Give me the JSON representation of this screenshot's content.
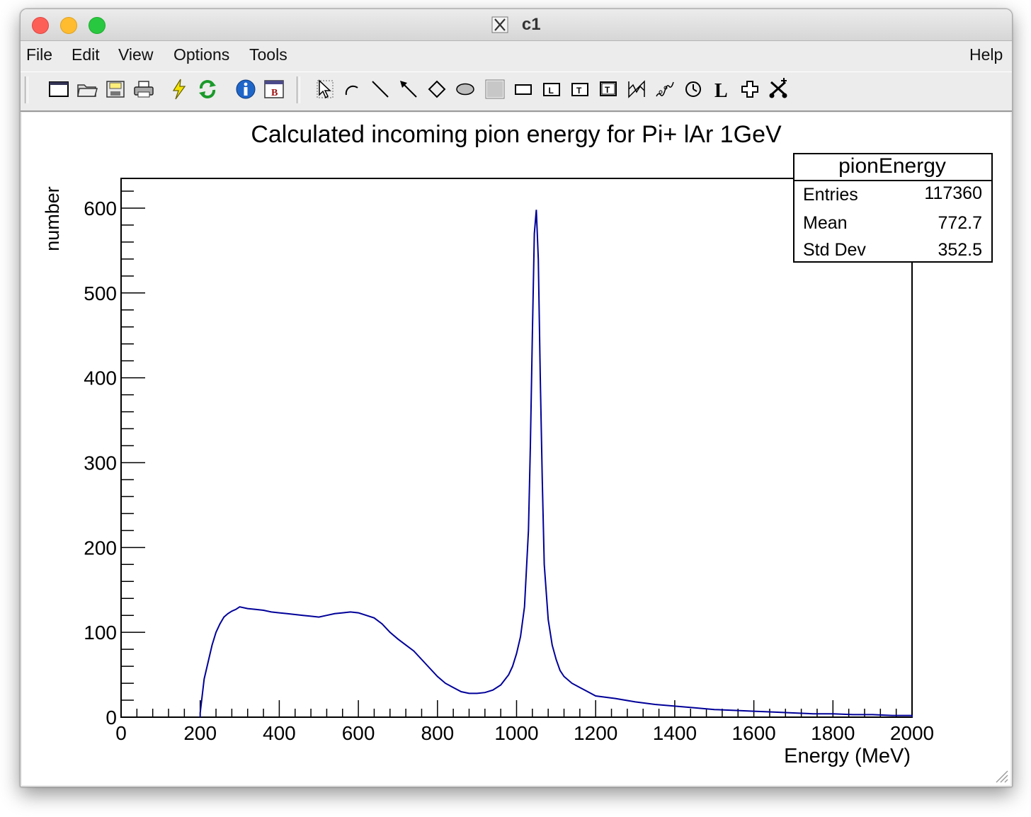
{
  "window": {
    "title": "c1"
  },
  "menubar": {
    "file": "File",
    "edit": "Edit",
    "view": "View",
    "options": "Options",
    "tools": "Tools",
    "help": "Help"
  },
  "toolbar": {
    "icons": [
      "new-canvas-icon",
      "open-folder-icon",
      "save-icon",
      "print-icon",
      "interrupt-icon",
      "refresh-icon",
      "info-icon",
      "browser-icon",
      "pointer-icon",
      "arc-icon",
      "line-icon",
      "arrow-icon",
      "diamond-icon",
      "ellipse-icon",
      "pad-icon",
      "pave-icon",
      "pave-label-icon",
      "pave-text-icon",
      "paves-text-icon",
      "graph-icon",
      "curly-line-icon",
      "curly-arc-icon",
      "latex-icon",
      "marker-icon",
      "cut-icon"
    ]
  },
  "stats_box": {
    "name": "pionEnergy",
    "rows": [
      {
        "label": "Entries",
        "value": "117360"
      },
      {
        "label": "Mean",
        "value": "772.7"
      },
      {
        "label": "Std Dev",
        "value": "352.5"
      }
    ]
  },
  "chart_data": {
    "type": "line",
    "title": "Calculated incoming pion energy for Pi+ lAr 1GeV",
    "xlabel": "Energy (MeV)",
    "ylabel": "number",
    "xlim": [
      0,
      2000
    ],
    "ylim": [
      0,
      635
    ],
    "x_ticks": [
      "0",
      "200",
      "400",
      "600",
      "800",
      "1000",
      "1200",
      "1400",
      "1600",
      "1800",
      "2000"
    ],
    "y_ticks": [
      "0",
      "100",
      "200",
      "300",
      "400",
      "500",
      "600"
    ],
    "line_color": "#000099",
    "grid": false,
    "legend": "none",
    "series": [
      {
        "x": [
          200,
          210,
          220,
          230,
          240,
          250,
          260,
          270,
          280,
          290,
          300,
          320,
          340,
          360,
          380,
          400,
          420,
          440,
          460,
          480,
          500,
          520,
          540,
          560,
          580,
          600,
          620,
          640,
          660,
          680,
          700,
          720,
          740,
          760,
          780,
          800,
          820,
          840,
          860,
          880,
          900,
          920,
          940,
          960,
          980,
          990,
          1000,
          1010,
          1020,
          1030,
          1035,
          1040,
          1045,
          1050,
          1055,
          1060,
          1065,
          1070,
          1080,
          1090,
          1100,
          1110,
          1120,
          1140,
          1160,
          1180,
          1200,
          1250,
          1300,
          1350,
          1400,
          1450,
          1500,
          1550,
          1600,
          1650,
          1700,
          1750,
          1800,
          1850,
          1900,
          1950,
          2000
        ],
        "y": [
          5,
          45,
          65,
          85,
          100,
          110,
          118,
          122,
          125,
          127,
          130,
          128,
          127,
          126,
          124,
          123,
          122,
          121,
          120,
          119,
          118,
          120,
          122,
          123,
          124,
          123,
          120,
          117,
          110,
          100,
          92,
          85,
          78,
          68,
          58,
          48,
          40,
          35,
          30,
          28,
          28,
          29,
          32,
          38,
          50,
          60,
          75,
          95,
          130,
          220,
          320,
          450,
          570,
          598,
          540,
          400,
          280,
          180,
          115,
          85,
          68,
          55,
          48,
          40,
          35,
          30,
          25,
          22,
          18,
          15,
          13,
          11,
          9,
          8,
          7,
          6,
          5,
          4,
          4,
          3,
          3,
          2,
          2
        ]
      }
    ]
  }
}
